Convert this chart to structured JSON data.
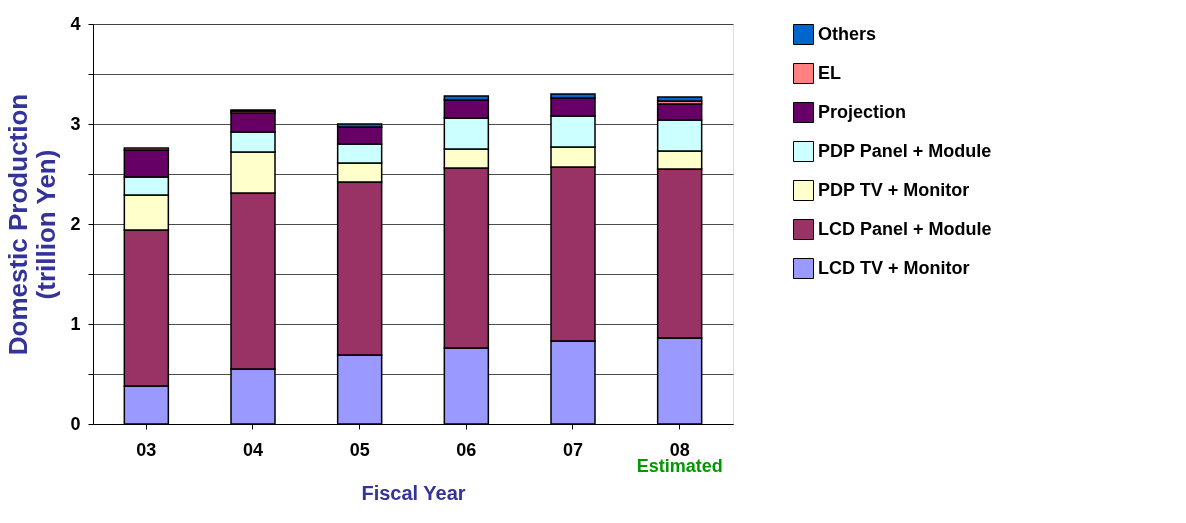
{
  "chart_data": {
    "type": "bar",
    "stacked": true,
    "xlabel": "Fiscal Year",
    "ylabel": "Domestic Production\n(trillion Yen)",
    "categories": [
      "03",
      "04",
      "05",
      "06",
      "07",
      "08"
    ],
    "series": [
      {
        "name": "LCD TV + Monitor",
        "color": "#9999ff",
        "values": [
          0.38,
          0.55,
          0.69,
          0.76,
          0.83,
          0.86
        ]
      },
      {
        "name": "LCD Panel + Module",
        "color": "#993366",
        "values": [
          1.56,
          1.76,
          1.73,
          1.8,
          1.74,
          1.69
        ]
      },
      {
        "name": "PDP TV + Monitor",
        "color": "#ffffcc",
        "values": [
          0.35,
          0.41,
          0.19,
          0.19,
          0.2,
          0.18
        ]
      },
      {
        "name": "PDP Panel + Module",
        "color": "#ccffff",
        "values": [
          0.18,
          0.2,
          0.19,
          0.31,
          0.31,
          0.31
        ]
      },
      {
        "name": "Projection",
        "color": "#660066",
        "values": [
          0.27,
          0.19,
          0.17,
          0.18,
          0.18,
          0.16
        ]
      },
      {
        "name": "EL",
        "color": "#ff8080",
        "values": [
          0.02,
          0.02,
          0,
          0,
          0,
          0.03
        ]
      },
      {
        "name": "Others",
        "color": "#0066cc",
        "values": [
          0,
          0.01,
          0.03,
          0.04,
          0.04,
          0.04
        ]
      }
    ],
    "ylim": [
      0,
      4
    ],
    "yticks": [
      0,
      {
        "value": 0.5,
        "label": null
      },
      1,
      {
        "value": 1.5,
        "label": null
      },
      2,
      {
        "value": 2.5,
        "label": null
      },
      3,
      {
        "value": 3.5,
        "label": null
      },
      4
    ],
    "grid": "y",
    "legend": "right",
    "annotations": [
      "Estimated"
    ]
  }
}
